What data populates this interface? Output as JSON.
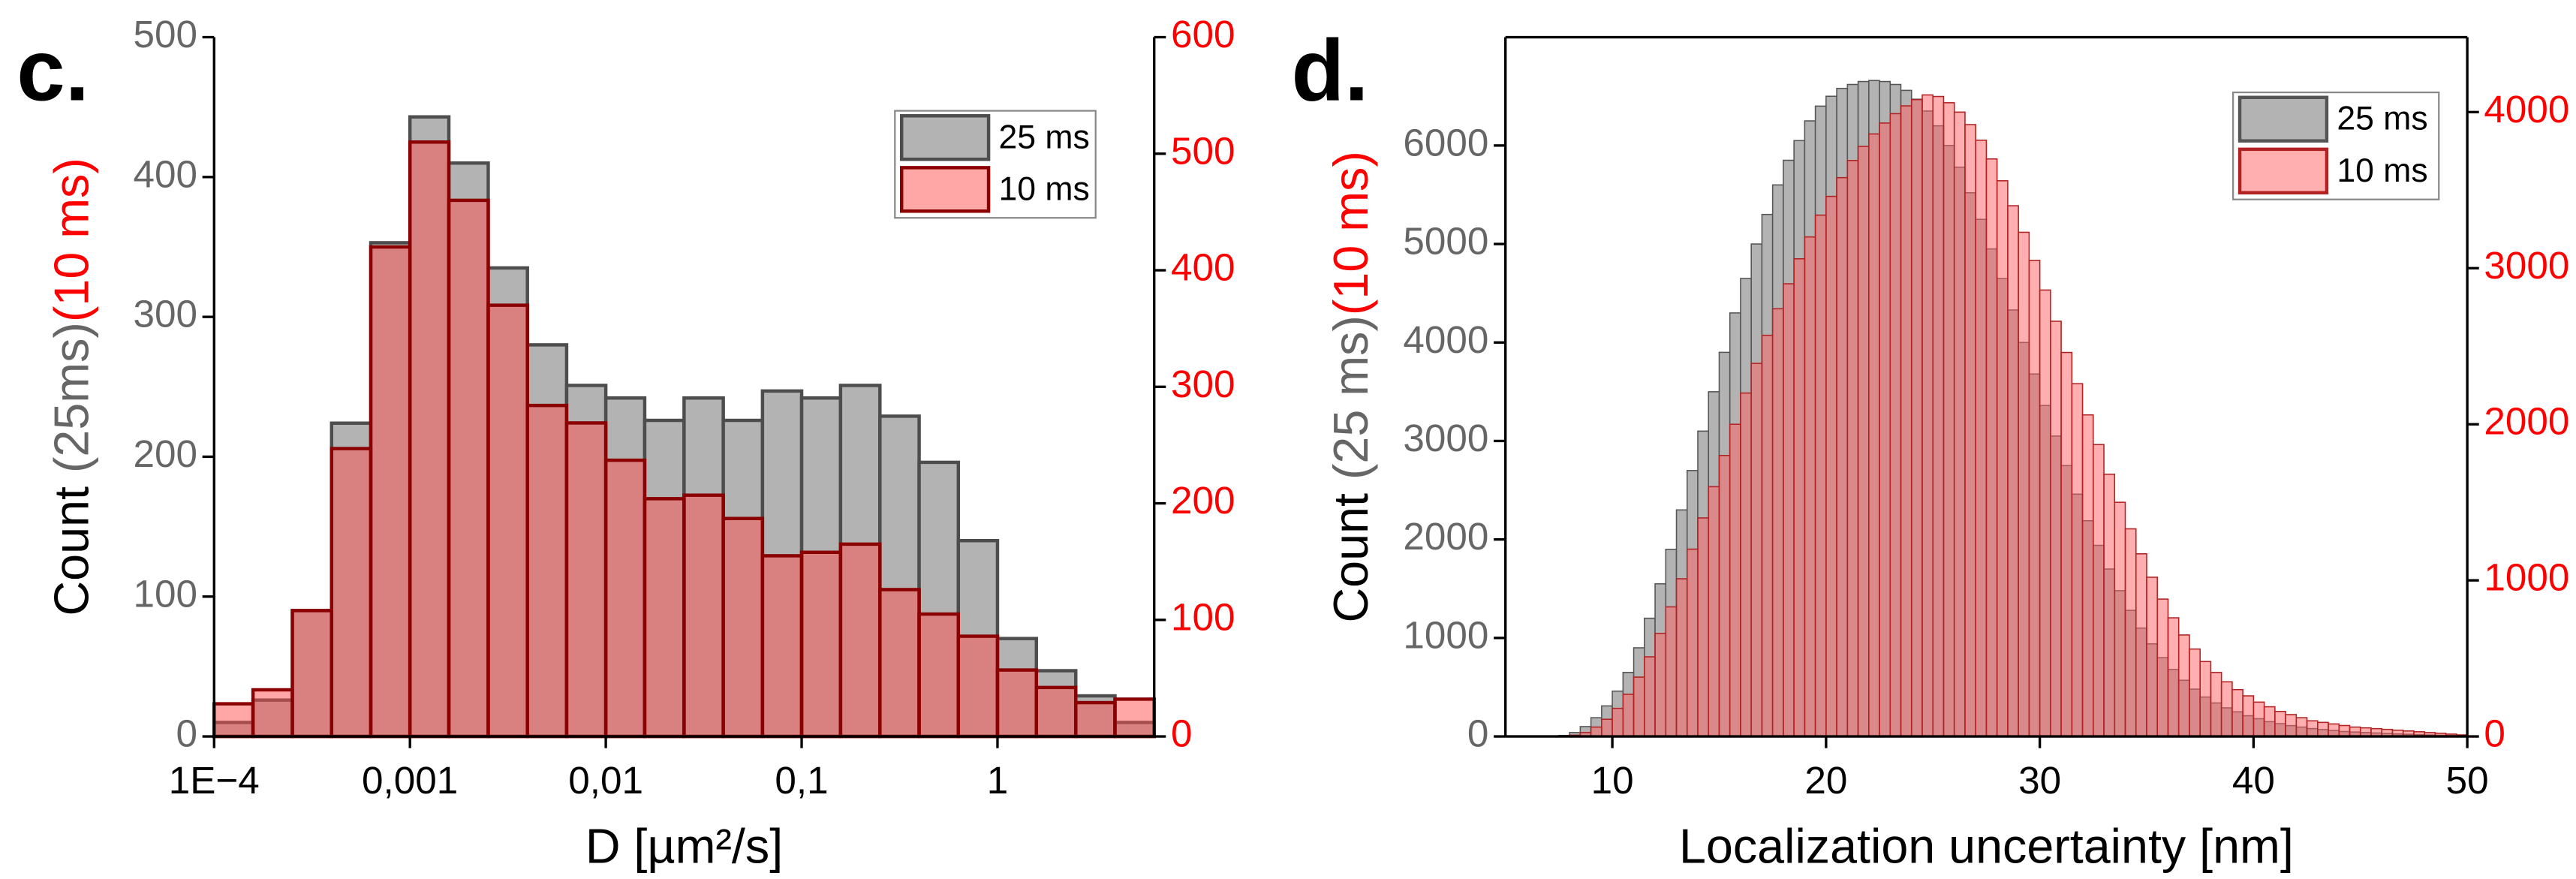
{
  "chart_data": [
    {
      "type": "histogram",
      "panel": "c.",
      "xscale": "log",
      "xlabel": "D [µm²/s]",
      "ylabel": [
        "Count ",
        "(25ms)",
        "(10 ms)"
      ],
      "xlim": [
        0.0001,
        6.31
      ],
      "xticks": [
        {
          "value": 0.0001,
          "label": "1E−4"
        },
        {
          "value": 0.001,
          "label": "0,001"
        },
        {
          "value": 0.01,
          "label": "0,01"
        },
        {
          "value": 0.1,
          "label": "0,1"
        },
        1
      ],
      "ylim": [
        0,
        500
      ],
      "yticks": [
        0,
        100,
        200,
        300,
        400,
        500
      ],
      "y2lim": [
        0,
        600
      ],
      "y2ticks": [
        0,
        100,
        200,
        300,
        400,
        500,
        600
      ],
      "legend": "upper right",
      "bins": [
        0.0001,
        0.000158,
        0.000251,
        0.000398,
        0.000631,
        0.001,
        0.00158,
        0.00251,
        0.00398,
        0.00631,
        0.01,
        0.0158,
        0.0251,
        0.0398,
        0.0631,
        0.1,
        0.158,
        0.251,
        0.398,
        0.631,
        1,
        1.58,
        2.51,
        3.98,
        6.31
      ],
      "series": [
        {
          "name": "25 ms",
          "color": "#b3b3b3",
          "edgecolor": "#4d4d4d",
          "values": [
            10,
            26,
            90,
            224,
            353,
            443,
            410,
            335,
            280,
            251,
            242,
            226,
            242,
            226,
            247,
            242,
            251,
            229,
            196,
            140,
            70,
            47,
            29,
            10
          ]
        },
        {
          "name": "10 ms",
          "color": "#ff5050",
          "edgecolor": "#8b0000",
          "axis": "y2",
          "values": [
            28,
            40,
            108,
            247,
            420,
            510,
            460,
            370,
            284,
            269,
            237,
            204,
            207,
            187,
            155,
            158,
            165,
            126,
            105,
            86,
            57,
            42,
            29,
            32
          ]
        }
      ]
    },
    {
      "type": "histogram",
      "panel": "d.",
      "xscale": "linear",
      "xlabel": "Localization uncertainty [nm]",
      "ylabel": [
        "Count ",
        "(25 ms)",
        "(10 ms)"
      ],
      "xlim": [
        5,
        50
      ],
      "xticks": [
        10,
        20,
        30,
        40,
        50
      ],
      "ylim": [
        0,
        7100
      ],
      "yticks": [
        0,
        1000,
        2000,
        3000,
        4000,
        5000,
        6000
      ],
      "y2lim": [
        0,
        4480
      ],
      "y2ticks": [
        0,
        1000,
        2000,
        3000,
        4000
      ],
      "legend": "upper right",
      "frame": true,
      "bins": [
        7.5,
        8,
        8.5,
        9,
        9.5,
        10,
        10.5,
        11,
        11.5,
        12,
        12.5,
        13,
        13.5,
        14,
        14.5,
        15,
        15.5,
        16,
        16.5,
        17,
        17.5,
        18,
        18.5,
        19,
        19.5,
        20,
        20.5,
        21,
        21.5,
        22,
        22.5,
        23,
        23.5,
        24,
        24.5,
        25,
        25.5,
        26,
        26.5,
        27,
        27.5,
        28,
        28.5,
        29,
        29.5,
        30,
        30.5,
        31,
        31.5,
        32,
        32.5,
        33,
        33.5,
        34,
        34.5,
        35,
        35.5,
        36,
        36.5,
        37,
        37.5,
        38,
        38.5,
        39,
        39.5,
        40,
        40.5,
        41,
        41.5,
        42,
        42.5,
        43,
        43.5,
        44,
        44.5,
        45,
        45.5,
        46,
        46.5,
        47,
        47.5,
        48,
        48.5,
        49,
        49.5,
        50
      ],
      "series": [
        {
          "name": "25 ms",
          "color": "#b3b3b3",
          "edgecolor": "#555555",
          "values": [
            10,
            40,
            100,
            190,
            310,
            460,
            650,
            900,
            1200,
            1550,
            1900,
            2300,
            2700,
            3100,
            3500,
            3900,
            4300,
            4650,
            5000,
            5300,
            5600,
            5850,
            6050,
            6250,
            6400,
            6500,
            6580,
            6620,
            6650,
            6660,
            6650,
            6620,
            6560,
            6470,
            6350,
            6200,
            6000,
            5780,
            5520,
            5250,
            4950,
            4650,
            4330,
            4000,
            3680,
            3360,
            3050,
            2750,
            2460,
            2190,
            1940,
            1700,
            1480,
            1280,
            1100,
            940,
            800,
            680,
            570,
            480,
            400,
            340,
            290,
            250,
            210,
            180,
            150,
            130,
            110,
            95,
            80,
            70,
            60,
            50,
            45,
            40,
            35,
            30,
            25,
            22,
            18,
            15,
            12,
            10,
            8
          ]
        },
        {
          "name": "10 ms",
          "color": "#ff6060",
          "edgecolor": "#b22222",
          "axis": "y2",
          "values": [
            2,
            8,
            25,
            60,
            110,
            180,
            270,
            380,
            510,
            660,
            830,
            1010,
            1200,
            1400,
            1600,
            1800,
            2000,
            2200,
            2390,
            2570,
            2740,
            2900,
            3060,
            3200,
            3340,
            3460,
            3580,
            3690,
            3780,
            3860,
            3930,
            3990,
            4040,
            4080,
            4110,
            4100,
            4060,
            4000,
            3920,
            3820,
            3700,
            3560,
            3400,
            3230,
            3050,
            2860,
            2660,
            2460,
            2260,
            2060,
            1870,
            1680,
            1500,
            1330,
            1170,
            1020,
            880,
            760,
            650,
            560,
            480,
            410,
            350,
            300,
            260,
            220,
            190,
            160,
            140,
            120,
            100,
            90,
            80,
            70,
            60,
            55,
            50,
            45,
            40,
            35,
            30,
            25,
            20,
            15,
            10
          ]
        }
      ]
    }
  ]
}
